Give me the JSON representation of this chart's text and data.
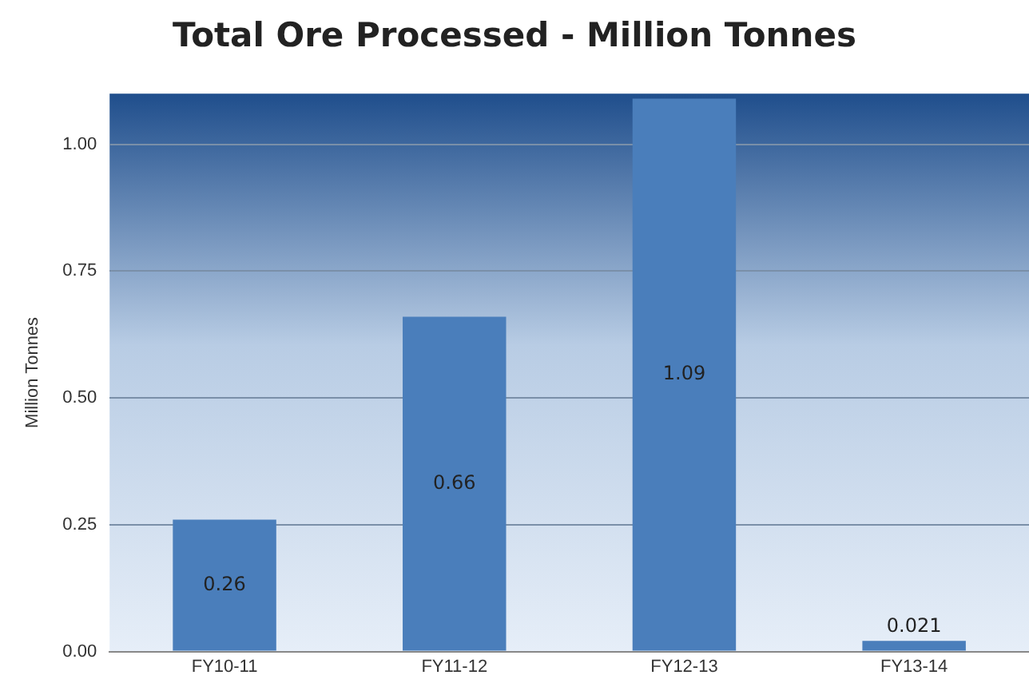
{
  "chart_data": {
    "type": "bar",
    "title": "Total Ore Processed - Million Tonnes",
    "ylabel": "Million Tonnes",
    "categories": [
      "FY10-11",
      "FY11-12",
      "FY12-13",
      "FY13-14"
    ],
    "values": [
      0.26,
      0.66,
      1.09,
      0.021
    ],
    "color": "#4a7ebb",
    "ylim": [
      0,
      1.1
    ],
    "yticks": [
      {
        "value": 0,
        "label": "0.00"
      },
      {
        "value": 0.25,
        "label": "0.25"
      },
      {
        "value": 0.5,
        "label": "0.50"
      },
      {
        "value": 0.75,
        "label": "0.75"
      },
      {
        "value": 1,
        "label": "1.00"
      }
    ],
    "grid": "y",
    "data_labels": true
  }
}
